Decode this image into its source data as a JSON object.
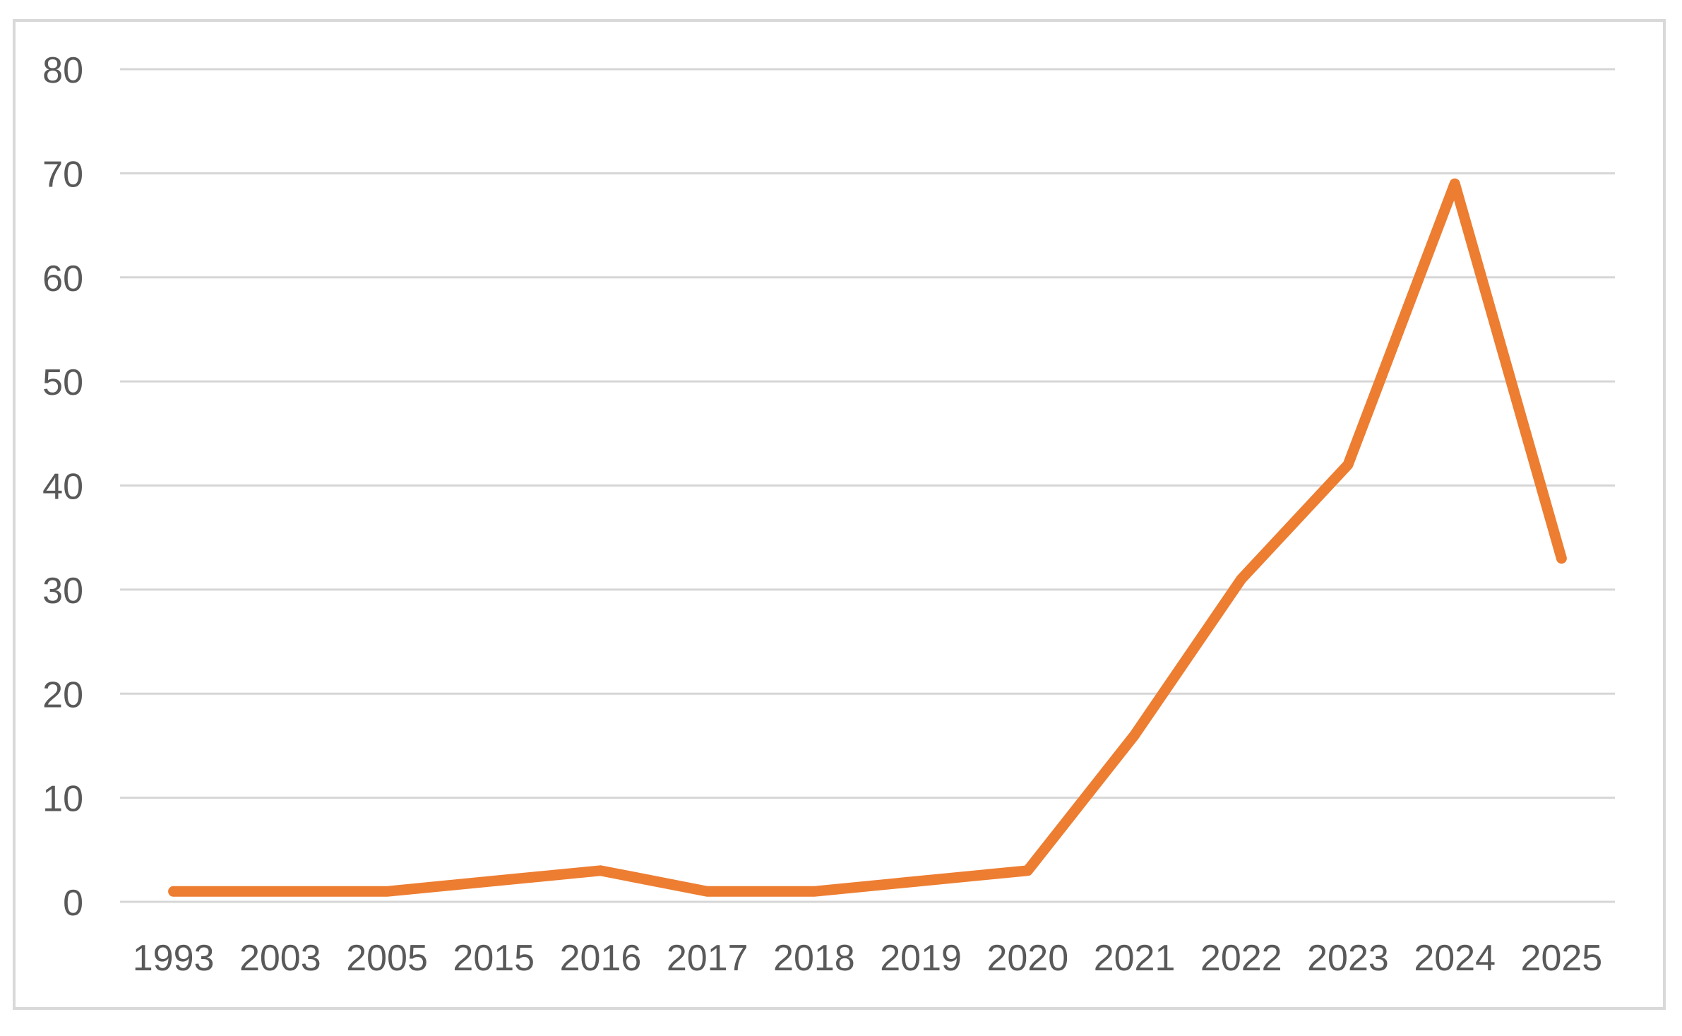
{
  "chart_data": {
    "type": "line",
    "title": "",
    "xlabel": "",
    "ylabel": "",
    "categories": [
      "1993",
      "2003",
      "2005",
      "2015",
      "2016",
      "2017",
      "2018",
      "2019",
      "2020",
      "2021",
      "2022",
      "2023",
      "2024",
      "2025"
    ],
    "series": [
      {
        "name": "",
        "values": [
          1,
          1,
          1,
          2,
          3,
          1,
          1,
          2,
          3,
          16,
          31,
          42,
          69,
          33
        ]
      }
    ],
    "ylim": [
      0,
      80
    ],
    "ytick_step": 10,
    "ytick_labels": [
      "0",
      "10",
      "20",
      "30",
      "40",
      "50",
      "60",
      "70",
      "80"
    ],
    "grid": "horizontal",
    "legend": "none",
    "colors": {
      "line": "#ED7D31",
      "gridline": "#D6D6D6",
      "tick_label": "#595959",
      "chart_border": "#D9D9D9",
      "background": "#FFFFFF"
    }
  }
}
